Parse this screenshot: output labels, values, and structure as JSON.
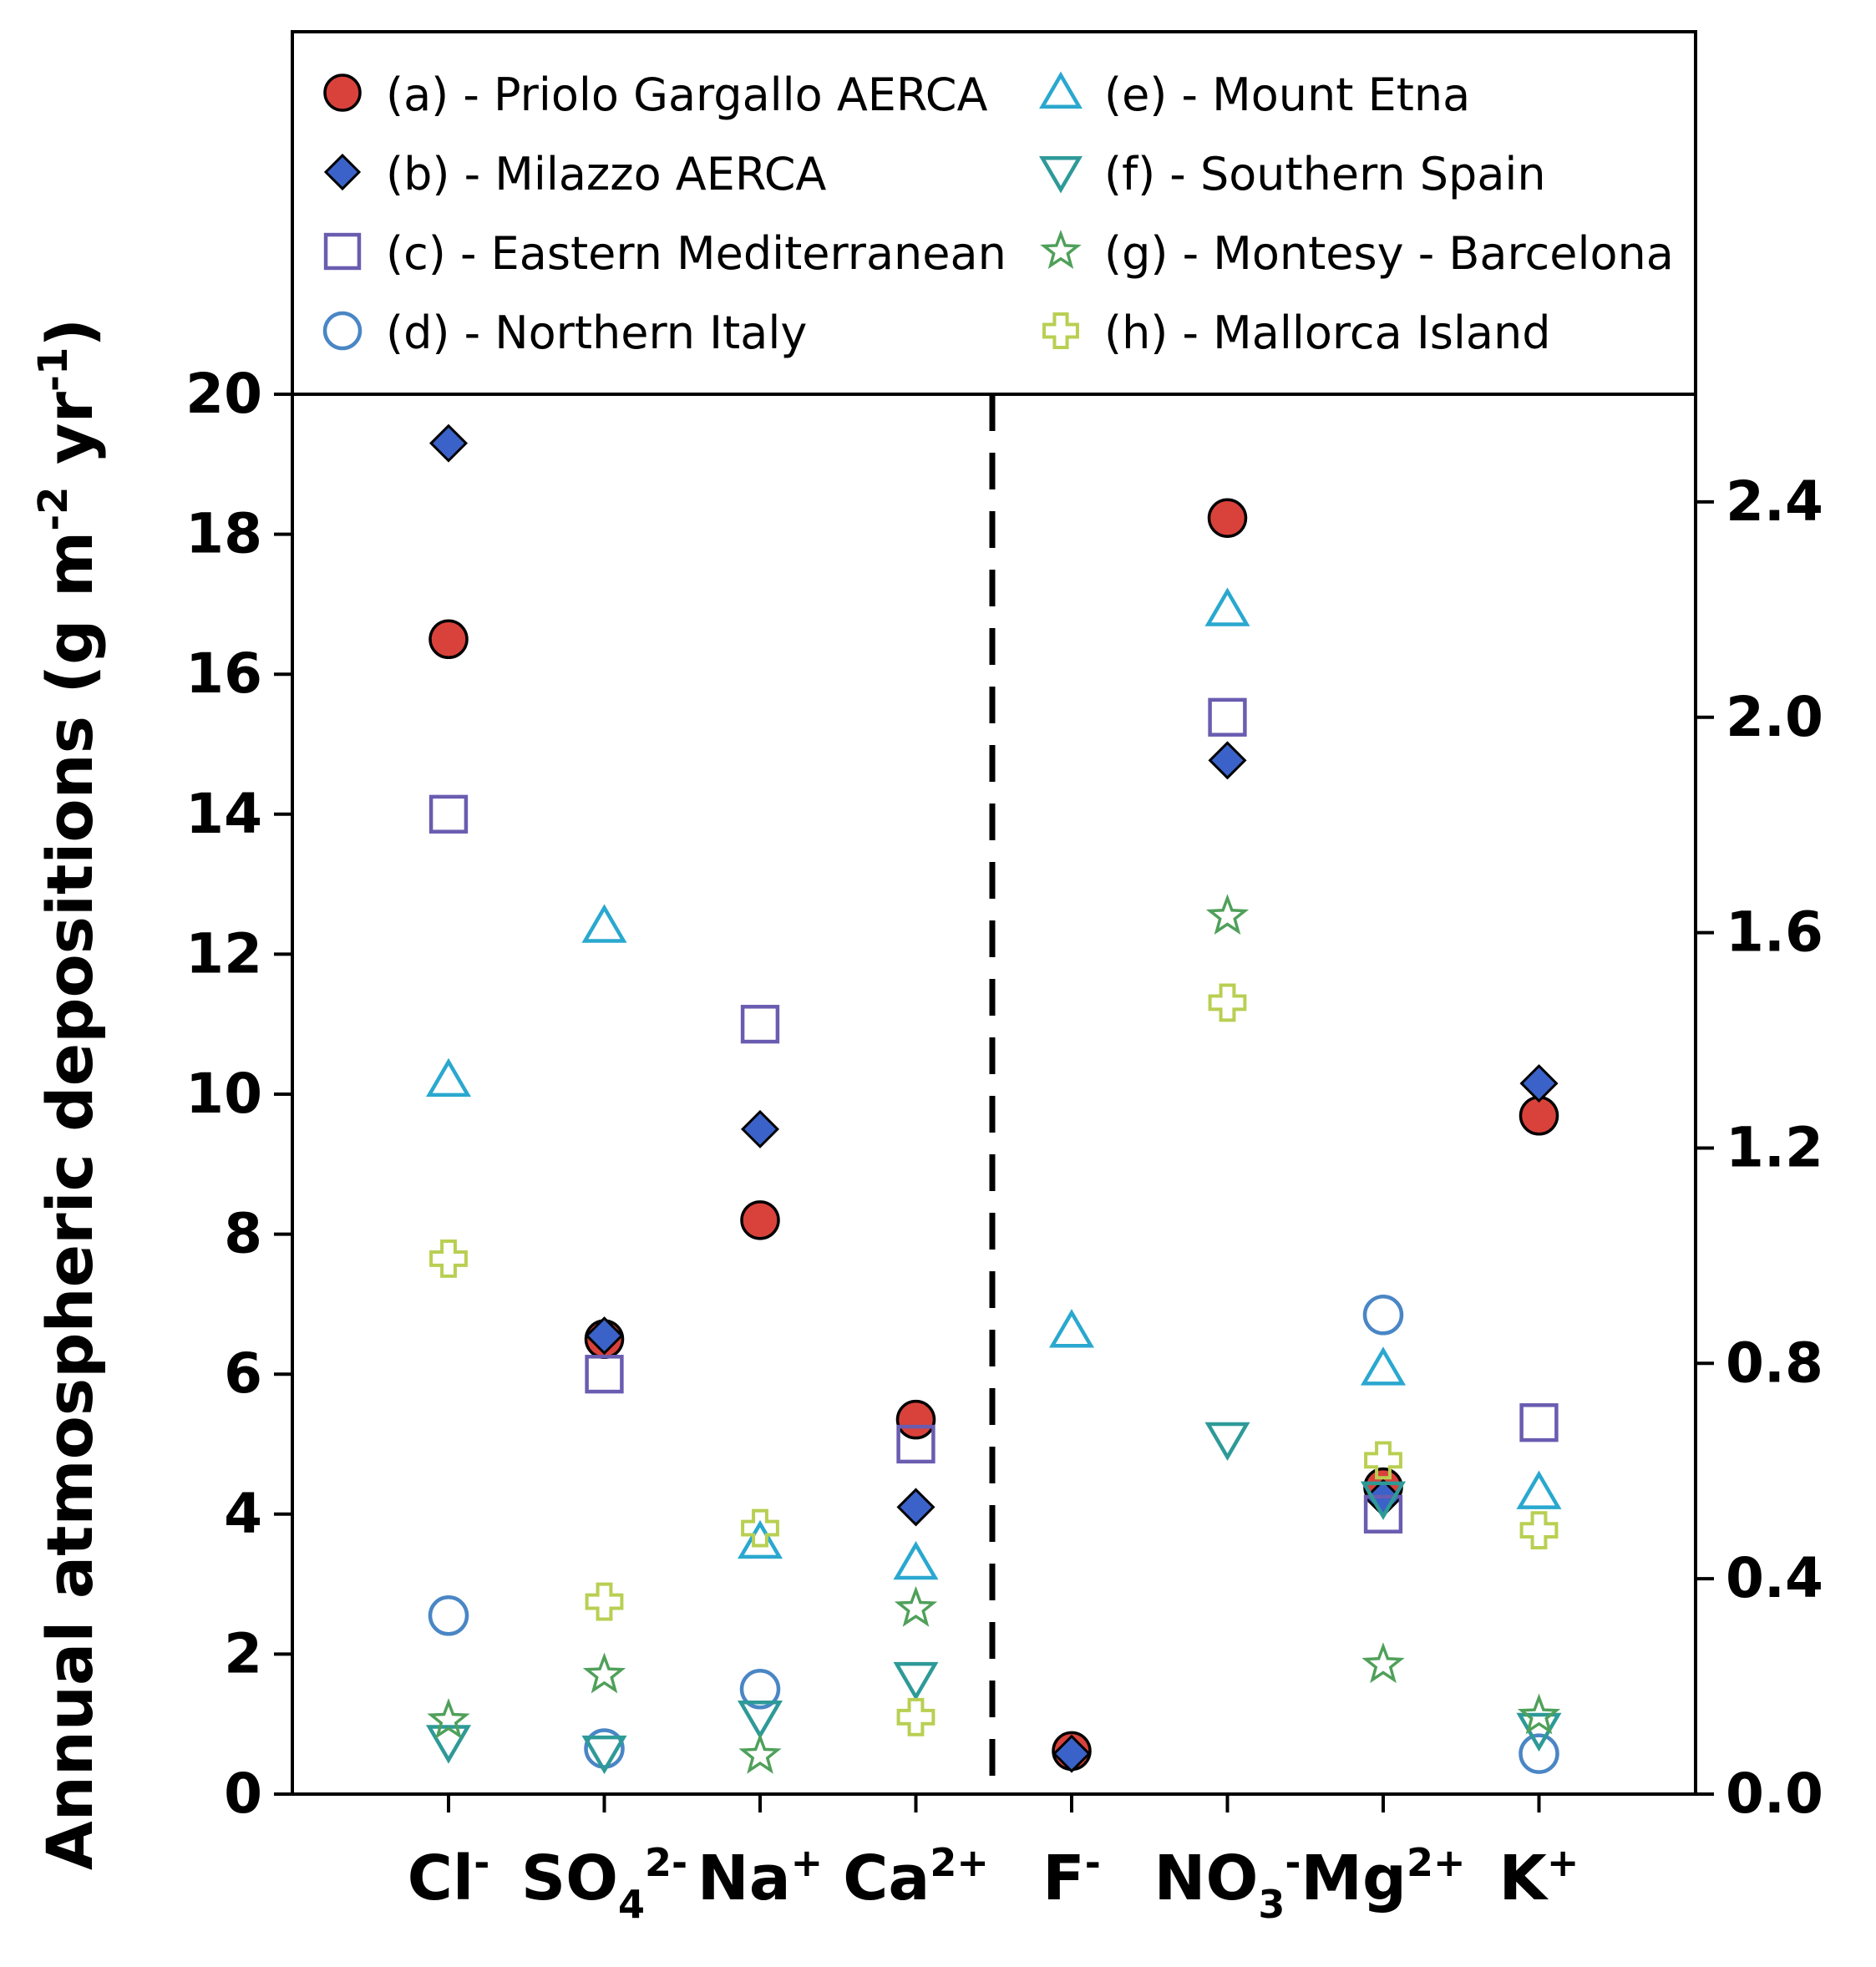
{
  "chart_data": {
    "type": "scatter",
    "ylabel": {
      "main": "Annual atmospheric depositions (g m",
      "sup1": "-2",
      "mid": " yr",
      "sup2": "-1",
      "end": ")"
    },
    "left_axis": {
      "ylim": [
        0,
        20
      ],
      "ticks": [
        "0",
        "2",
        "4",
        "6",
        "8",
        "10",
        "12",
        "14",
        "16",
        "18",
        "20"
      ]
    },
    "right_axis": {
      "ylim": [
        0,
        2.6
      ],
      "ticks": [
        "0.0",
        "0.4",
        "0.8",
        "1.2",
        "1.6",
        "2.0",
        "2.4"
      ]
    },
    "categories": [
      {
        "base": "Cl",
        "sup": "-",
        "axis": "left"
      },
      {
        "base": "SO",
        "sub": "4",
        "sup": "2-",
        "axis": "left"
      },
      {
        "base": "Na",
        "sup": "+",
        "axis": "left"
      },
      {
        "base": "Ca",
        "sup": "2+",
        "axis": "left"
      },
      {
        "base": "F",
        "sup": "-",
        "axis": "right"
      },
      {
        "base": "NO",
        "sub": "3",
        "sup": "-",
        "axis": "right"
      },
      {
        "base": "Mg",
        "sup": "2+",
        "axis": "right"
      },
      {
        "base": "K",
        "sup": "+",
        "axis": "right"
      }
    ],
    "series": [
      {
        "name": "(a) - Priolo Gargallo AERCA",
        "marker": "circle-filled",
        "color": "#d9423b",
        "values": [
          16.5,
          6.5,
          8.2,
          5.35,
          0.08,
          2.37,
          0.57,
          1.26
        ]
      },
      {
        "name": "(b) - Milazzo AERCA",
        "marker": "diamond-filled",
        "color": "#3a62c8",
        "values": [
          19.3,
          6.55,
          9.5,
          4.1,
          0.075,
          1.92,
          0.55,
          1.32
        ]
      },
      {
        "name": "(c) - Eastern Mediterranean",
        "marker": "square-open",
        "color": "#6a5cb0",
        "values": [
          14.0,
          6.0,
          11.0,
          5.0,
          null,
          2.0,
          0.52,
          0.69
        ]
      },
      {
        "name": "(d) - Northern Italy",
        "marker": "circle-open",
        "color": "#4a86c5",
        "values": [
          2.55,
          0.65,
          1.5,
          null,
          null,
          null,
          0.89,
          0.075
        ]
      },
      {
        "name": "(e) - Mount Etna",
        "marker": "triangle-up-open",
        "color": "#2aa8cf",
        "values": [
          10.2,
          12.4,
          3.6,
          3.3,
          0.86,
          2.2,
          0.79,
          0.56
        ]
      },
      {
        "name": "(f) - Southern Spain",
        "marker": "triangle-down-open",
        "color": "#2e9a98",
        "values": [
          0.75,
          0.6,
          1.1,
          1.65,
          null,
          0.66,
          0.55,
          0.12
        ]
      },
      {
        "name": "(g) - Montesy - Barcelona",
        "marker": "star-open",
        "color": "#4fa05a",
        "values": [
          1.05,
          1.7,
          0.55,
          2.65,
          null,
          1.63,
          0.24,
          0.145
        ]
      },
      {
        "name": "(h) - Mallorca Island",
        "marker": "plus-open",
        "color": "#b8cf52",
        "values": [
          7.65,
          2.75,
          3.8,
          1.1,
          null,
          1.47,
          0.62,
          0.49
        ]
      }
    ],
    "divider": "dashed line between Ca2+ and F-",
    "legend_position": "top, two columns"
  }
}
